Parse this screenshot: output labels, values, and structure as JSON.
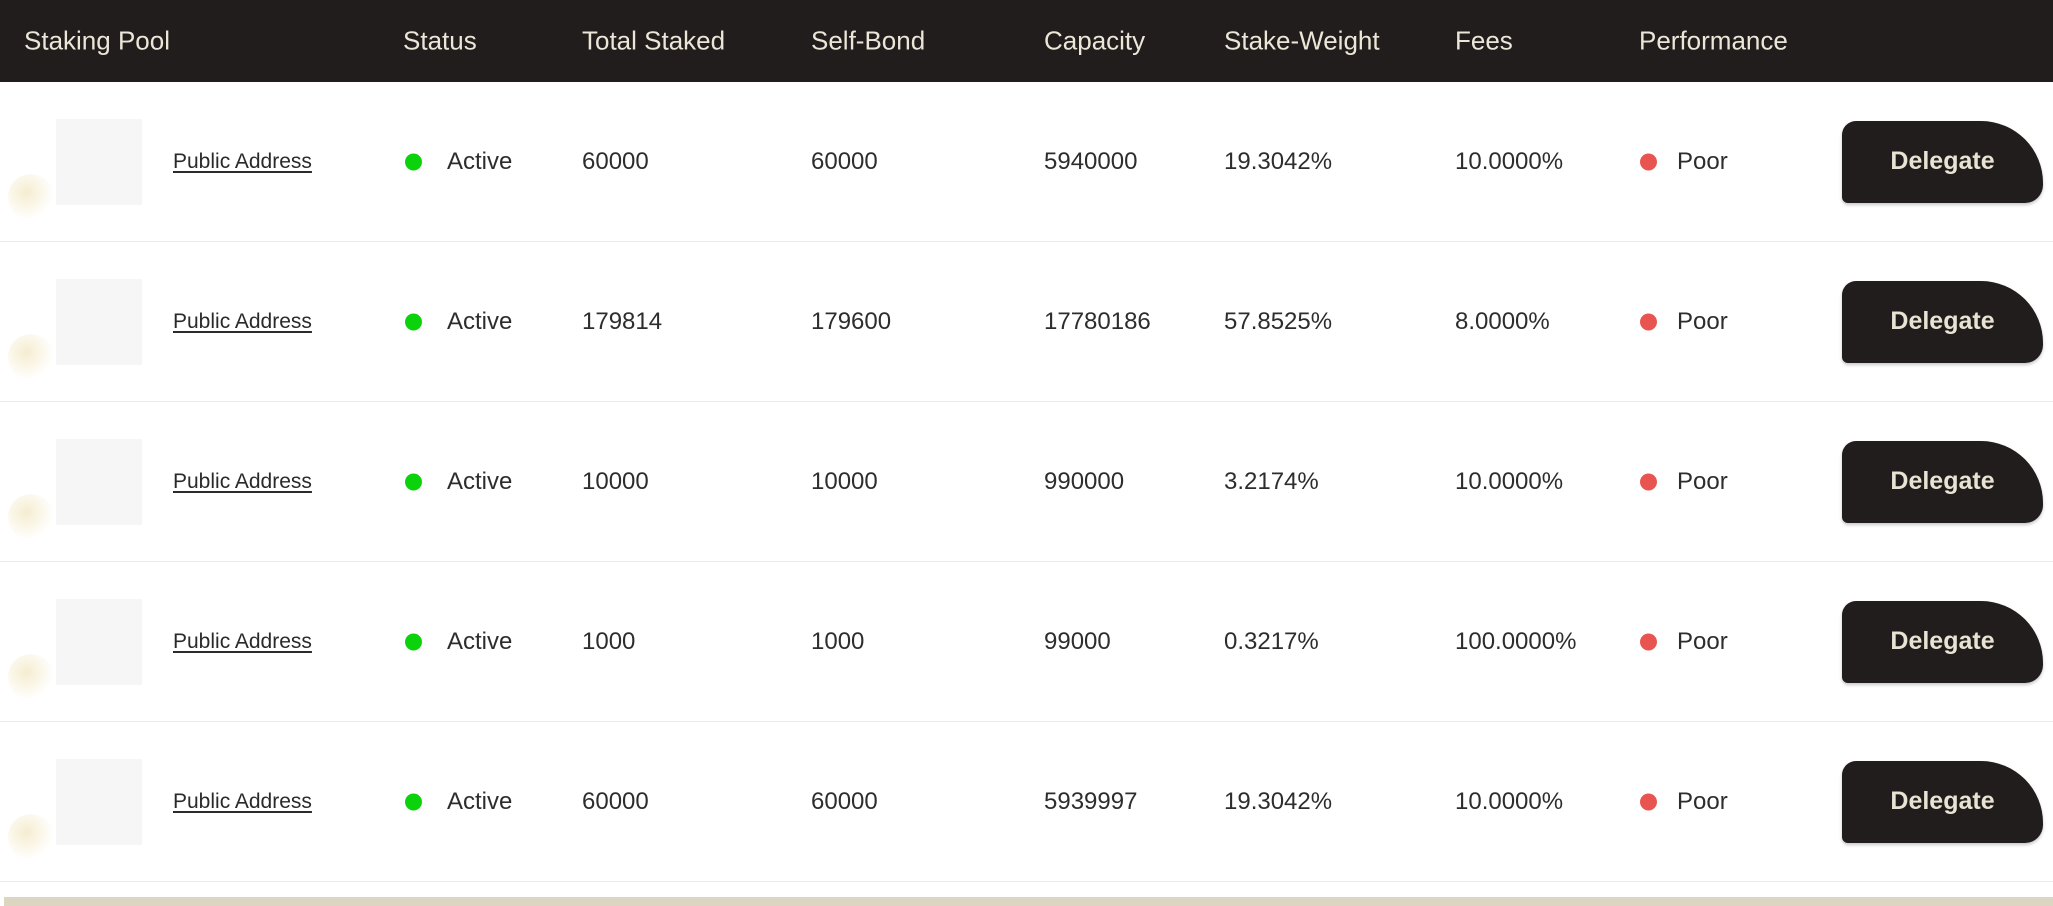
{
  "header": {
    "columns": [
      "Staking Pool",
      "Status",
      "Total Staked",
      "Self-Bond",
      "Capacity",
      "Stake-Weight",
      "Fees",
      "Performance"
    ]
  },
  "rows": [
    {
      "pool_link": "Public Address",
      "status": "Active",
      "total_staked": "60000",
      "self_bond": "60000",
      "capacity": "5940000",
      "stake_weight": "19.3042%",
      "fees": "10.0000%",
      "performance": "Poor",
      "action_label": "Delegate"
    },
    {
      "pool_link": "Public Address",
      "status": "Active",
      "total_staked": "179814",
      "self_bond": "179600",
      "capacity": "17780186",
      "stake_weight": "57.8525%",
      "fees": "8.0000%",
      "performance": "Poor",
      "action_label": "Delegate"
    },
    {
      "pool_link": "Public Address",
      "status": "Active",
      "total_staked": "10000",
      "self_bond": "10000",
      "capacity": "990000",
      "stake_weight": "3.2174%",
      "fees": "10.0000%",
      "performance": "Poor",
      "action_label": "Delegate"
    },
    {
      "pool_link": "Public Address",
      "status": "Active",
      "total_staked": "1000",
      "self_bond": "1000",
      "capacity": "99000",
      "stake_weight": "0.3217%",
      "fees": "100.0000%",
      "performance": "Poor",
      "action_label": "Delegate"
    },
    {
      "pool_link": "Public Address",
      "status": "Active",
      "total_staked": "60000",
      "self_bond": "60000",
      "capacity": "5939997",
      "stake_weight": "19.3042%",
      "fees": "10.0000%",
      "performance": "Poor",
      "action_label": "Delegate"
    }
  ],
  "icons": {
    "status_dot": "filled-circle",
    "performance_dot": "filled-circle"
  },
  "colors": {
    "header_bg": "#201d1c",
    "header_text": "#ece6d8",
    "status_active_dot": "#0cd20c",
    "performance_poor_dot": "#e85550",
    "delegate_button_bg": "#201d1c",
    "delegate_button_text": "#e9e3d3",
    "row_text": "#2d2d2d",
    "row_divider": "#ececec",
    "avatar_placeholder": "#f6f6f6",
    "footer_bar": "#dcd5c1"
  }
}
